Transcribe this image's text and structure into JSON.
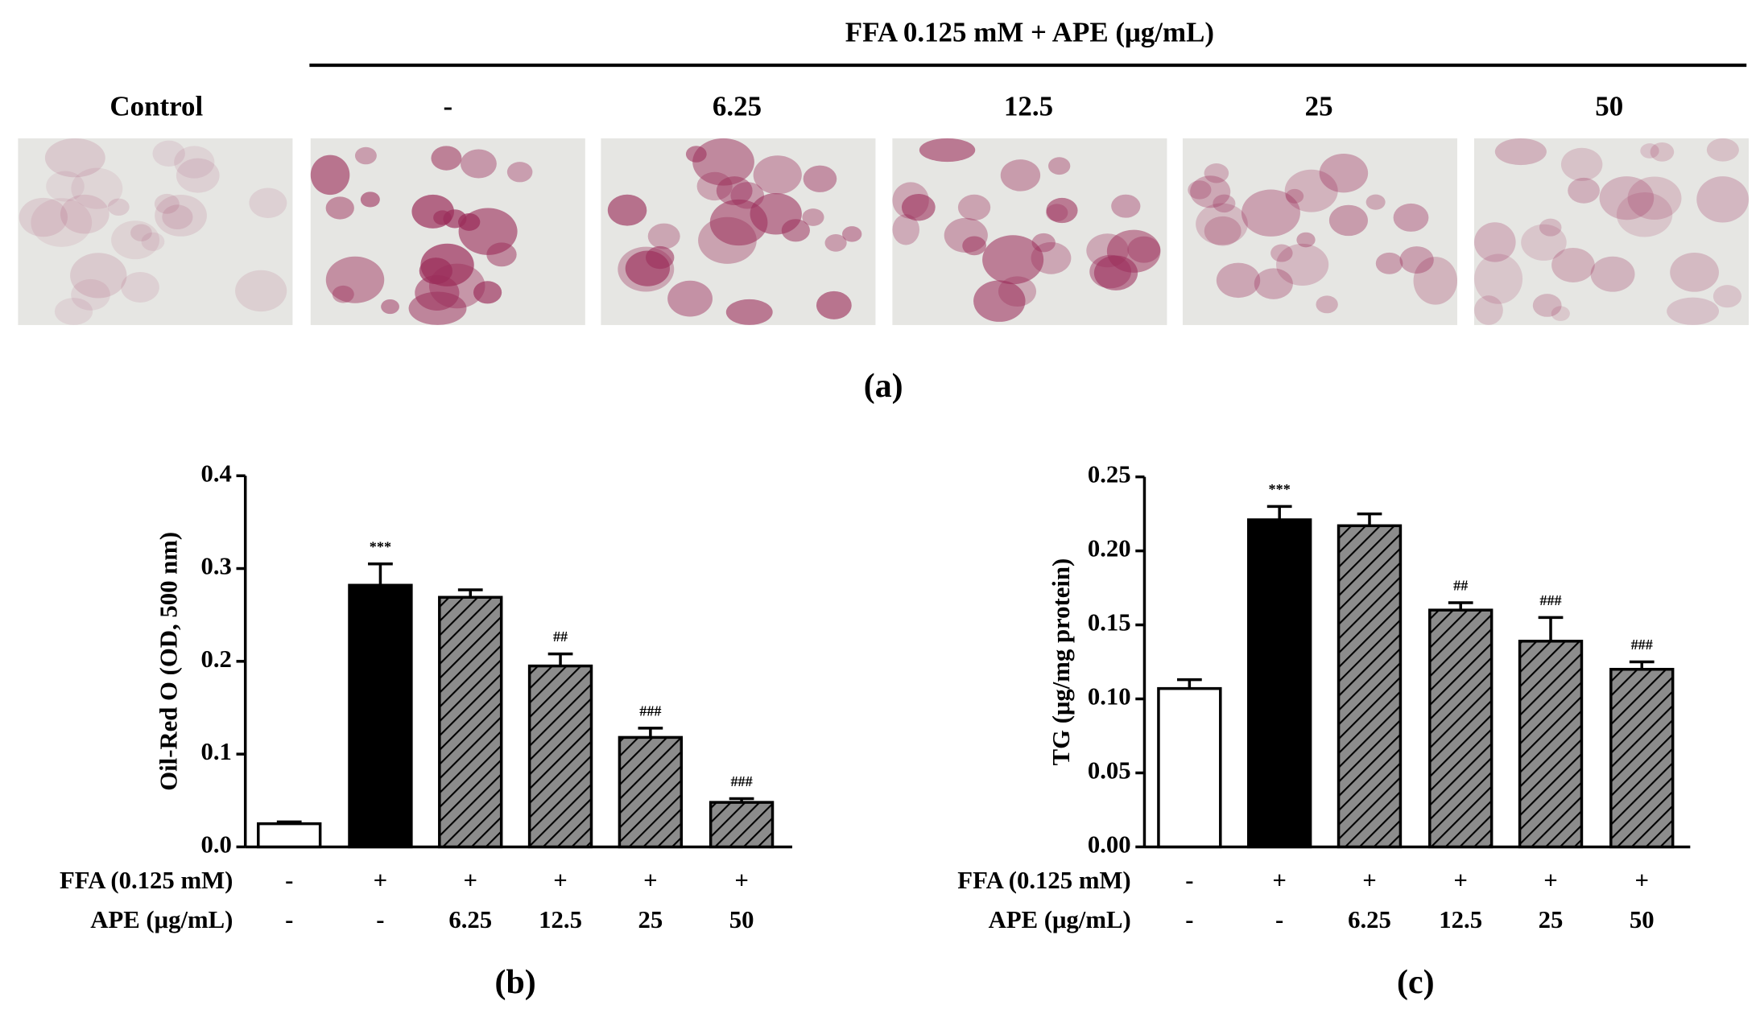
{
  "panel_a": {
    "header": "FFA 0.125 mM + APE (μg/mL)",
    "labels": [
      "Control",
      "-",
      "6.25",
      "12.5",
      "25",
      "50"
    ],
    "caption": "(a)"
  },
  "chart_data": [
    {
      "type": "bar",
      "caption": "(b)",
      "ylabel": "Oil-Red O (OD, 500 nm)",
      "rows": [
        {
          "label": "FFA (0.125 mM)",
          "values": [
            "-",
            "+",
            "+",
            "+",
            "+",
            "+"
          ]
        },
        {
          "label": "APE (μg/mL)",
          "values": [
            "-",
            "-",
            "6.25",
            "12.5",
            "25",
            "50"
          ]
        }
      ],
      "values": [
        0.025,
        0.282,
        0.269,
        0.195,
        0.118,
        0.048
      ],
      "errors": [
        0.002,
        0.023,
        0.008,
        0.013,
        0.01,
        0.004
      ],
      "annotations": [
        null,
        "***",
        null,
        "##",
        "###",
        "###"
      ],
      "fills": [
        "#ffffff",
        "#000000",
        "hatch",
        "hatch",
        "hatch",
        "hatch"
      ],
      "ylim": [
        0,
        0.4
      ],
      "yticks": [
        {
          "value": 0,
          "label": "0.0"
        },
        0.1,
        0.2,
        0.3,
        0.4
      ]
    },
    {
      "type": "bar",
      "caption": "(c)",
      "ylabel": "TG (μg/mg protein)",
      "rows": [
        {
          "label": "FFA (0.125 mM)",
          "values": [
            "-",
            "+",
            "+",
            "+",
            "+",
            "+"
          ]
        },
        {
          "label": "APE (μg/mL)",
          "values": [
            "-",
            "-",
            "6.25",
            "12.5",
            "25",
            "50"
          ]
        }
      ],
      "values": [
        0.107,
        0.221,
        0.217,
        0.16,
        0.139,
        0.12
      ],
      "errors": [
        0.006,
        0.009,
        0.008,
        0.005,
        0.016,
        0.005
      ],
      "annotations": [
        null,
        "***",
        null,
        "##",
        "###",
        "###"
      ],
      "fills": [
        "#ffffff",
        "#000000",
        "hatch",
        "hatch",
        "hatch",
        "hatch"
      ],
      "ylim": [
        0,
        0.25
      ],
      "yticks": [
        {
          "value": 0,
          "label": "0.00"
        },
        0.05,
        {
          "value": 0.1,
          "label": "0.10"
        },
        0.15,
        {
          "value": 0.2,
          "label": "0.20"
        },
        0.25
      ]
    }
  ]
}
